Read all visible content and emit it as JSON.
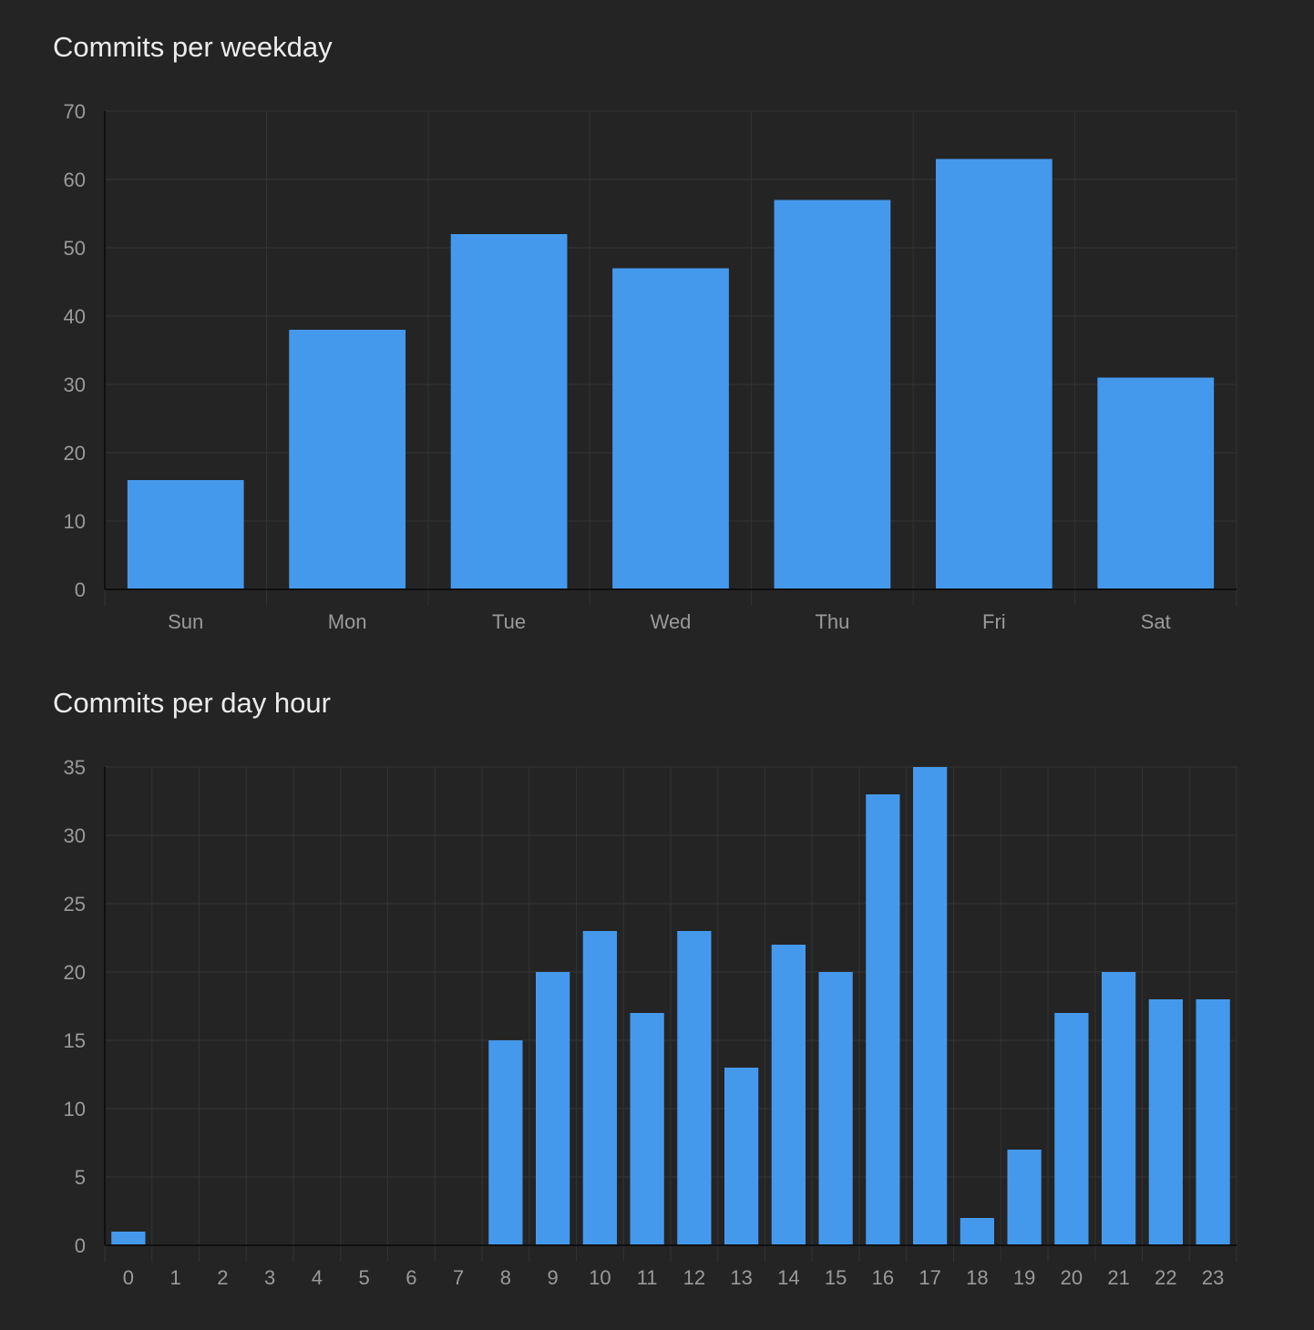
{
  "colors": {
    "background": "#242424",
    "bar": "#4599EC",
    "grid": "#333333",
    "axis": "#0f0f0f",
    "tick_text": "#9a9a9a",
    "title_text": "#ececec"
  },
  "chart_data": [
    {
      "type": "bar",
      "title": "Commits per weekday",
      "categories": [
        "Sun",
        "Mon",
        "Tue",
        "Wed",
        "Thu",
        "Fri",
        "Sat"
      ],
      "values": [
        16,
        38,
        52,
        47,
        57,
        63,
        31
      ],
      "ylim": [
        0,
        70
      ],
      "yticks": [
        0,
        10,
        20,
        30,
        40,
        50,
        60,
        70
      ],
      "grid": true,
      "legend": "none"
    },
    {
      "type": "bar",
      "title": "Commits per day hour",
      "categories": [
        "0",
        "1",
        "2",
        "3",
        "4",
        "5",
        "6",
        "7",
        "8",
        "9",
        "10",
        "11",
        "12",
        "13",
        "14",
        "15",
        "16",
        "17",
        "18",
        "19",
        "20",
        "21",
        "22",
        "23"
      ],
      "values": [
        1,
        0,
        0,
        0,
        0,
        0,
        0,
        0,
        15,
        20,
        23,
        17,
        23,
        13,
        22,
        20,
        33,
        35,
        2,
        7,
        17,
        20,
        18,
        18
      ],
      "ylim": [
        0,
        35
      ],
      "yticks": [
        0,
        5,
        10,
        15,
        20,
        25,
        30,
        35
      ],
      "grid": true,
      "legend": "none"
    }
  ]
}
